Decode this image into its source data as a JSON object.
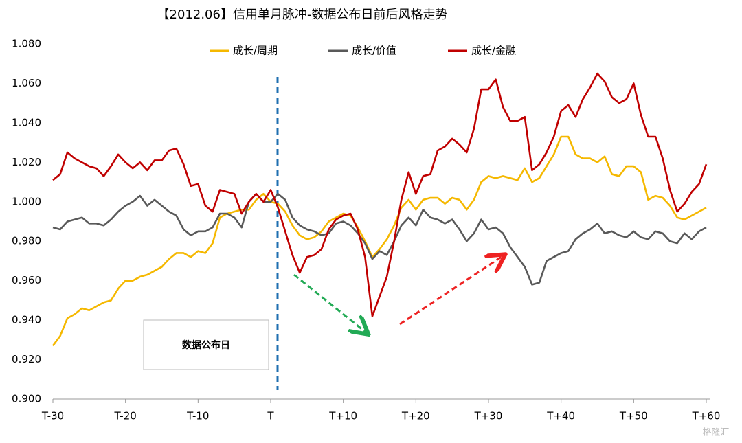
{
  "chart_data": {
    "type": "line",
    "title": "【2012.06】信用单月脉冲-数据公布日前后风格走势",
    "annotations": [
      "数据公布日",
      "格隆汇"
    ],
    "x": [
      -30,
      -29,
      -28,
      -27,
      -26,
      -25,
      -24,
      -23,
      -22,
      -21,
      -20,
      -19,
      -18,
      -17,
      -16,
      -15,
      -14,
      -13,
      -12,
      -11,
      -10,
      -9,
      -8,
      -7,
      -6,
      -5,
      -4,
      -3,
      -2,
      -1,
      0,
      1,
      2,
      3,
      4,
      5,
      6,
      7,
      8,
      9,
      10,
      11,
      12,
      13,
      14,
      15,
      16,
      17,
      18,
      19,
      20,
      21,
      22,
      23,
      24,
      25,
      26,
      27,
      28,
      29,
      30,
      31,
      32,
      33,
      34,
      35,
      36,
      37,
      38,
      39,
      40,
      41,
      42,
      43,
      44,
      45,
      46,
      47,
      48,
      49,
      50,
      51,
      52,
      53,
      54,
      55,
      56,
      57,
      58,
      59,
      60
    ],
    "series": [
      {
        "name": "成长/周期",
        "color": "#f5b800",
        "values": [
          0.927,
          0.932,
          0.941,
          0.943,
          0.946,
          0.945,
          0.947,
          0.949,
          0.95,
          0.956,
          0.96,
          0.96,
          0.962,
          0.963,
          0.965,
          0.967,
          0.971,
          0.974,
          0.974,
          0.972,
          0.975,
          0.974,
          0.979,
          0.992,
          0.994,
          0.995,
          0.996,
          0.996,
          1.001,
          1.004,
          1.0,
          0.999,
          0.995,
          0.988,
          0.983,
          0.981,
          0.982,
          0.985,
          0.99,
          0.992,
          0.994,
          0.993,
          0.987,
          0.98,
          0.972,
          0.976,
          0.981,
          0.988,
          0.997,
          1.001,
          0.996,
          1.001,
          1.002,
          1.002,
          0.999,
          1.002,
          1.001,
          0.996,
          1.001,
          1.01,
          1.013,
          1.012,
          1.013,
          1.012,
          1.011,
          1.017,
          1.01,
          1.012,
          1.018,
          1.024,
          1.033,
          1.033,
          1.024,
          1.022,
          1.022,
          1.02,
          1.023,
          1.014,
          1.013,
          1.018,
          1.018,
          1.015,
          1.001,
          1.003,
          1.002,
          0.998,
          0.992,
          0.991,
          0.993,
          0.995,
          0.997
        ]
      },
      {
        "name": "成长/价值",
        "color": "#595959",
        "values": [
          0.987,
          0.986,
          0.99,
          0.991,
          0.992,
          0.989,
          0.989,
          0.988,
          0.991,
          0.995,
          0.998,
          1.0,
          1.003,
          0.998,
          1.001,
          0.998,
          0.995,
          0.993,
          0.986,
          0.983,
          0.985,
          0.985,
          0.987,
          0.994,
          0.994,
          0.992,
          0.987,
          1.0,
          1.004,
          1.0,
          1.0,
          1.004,
          1.001,
          0.992,
          0.988,
          0.986,
          0.985,
          0.983,
          0.984,
          0.989,
          0.99,
          0.988,
          0.984,
          0.979,
          0.971,
          0.975,
          0.973,
          0.98,
          0.988,
          0.992,
          0.988,
          0.996,
          0.992,
          0.991,
          0.989,
          0.991,
          0.986,
          0.98,
          0.984,
          0.991,
          0.986,
          0.987,
          0.984,
          0.977,
          0.972,
          0.967,
          0.958,
          0.959,
          0.97,
          0.972,
          0.974,
          0.975,
          0.981,
          0.984,
          0.986,
          0.989,
          0.984,
          0.985,
          0.983,
          0.982,
          0.985,
          0.982,
          0.981,
          0.985,
          0.984,
          0.98,
          0.979,
          0.984,
          0.981,
          0.985,
          0.987
        ]
      },
      {
        "name": "成长/金融",
        "color": "#c00000",
        "values": [
          1.011,
          1.014,
          1.025,
          1.022,
          1.02,
          1.018,
          1.017,
          1.013,
          1.018,
          1.024,
          1.02,
          1.017,
          1.02,
          1.016,
          1.021,
          1.021,
          1.026,
          1.027,
          1.019,
          1.008,
          1.009,
          0.998,
          0.995,
          1.006,
          1.005,
          1.004,
          0.994,
          1.0,
          1.004,
          1.0,
          1.006,
          0.997,
          0.985,
          0.973,
          0.964,
          0.972,
          0.973,
          0.976,
          0.986,
          0.991,
          0.993,
          0.994,
          0.986,
          0.972,
          0.942,
          0.952,
          0.962,
          0.98,
          1.001,
          1.015,
          1.004,
          1.013,
          1.014,
          1.026,
          1.028,
          1.032,
          1.029,
          1.025,
          1.037,
          1.057,
          1.057,
          1.062,
          1.048,
          1.041,
          1.041,
          1.043,
          1.016,
          1.019,
          1.025,
          1.033,
          1.046,
          1.049,
          1.043,
          1.052,
          1.058,
          1.065,
          1.061,
          1.053,
          1.05,
          1.052,
          1.06,
          1.044,
          1.033,
          1.033,
          1.022,
          1.006,
          0.995,
          0.999,
          1.005,
          1.009,
          1.019
        ]
      }
    ],
    "xlim": [
      -30,
      60
    ],
    "xticks": [
      {
        "value": -30,
        "label": "T-30"
      },
      {
        "value": -20,
        "label": "T-20"
      },
      {
        "value": -10,
        "label": "T-10"
      },
      {
        "value": 0,
        "label": "T"
      },
      {
        "value": 10,
        "label": "T+10"
      },
      {
        "value": 20,
        "label": "T+20"
      },
      {
        "value": 30,
        "label": "T+30"
      },
      {
        "value": 40,
        "label": "T+40"
      },
      {
        "value": 50,
        "label": "T+50"
      },
      {
        "value": 60,
        "label": "T+60"
      }
    ],
    "ylim": [
      0.9,
      1.08
    ],
    "yticks": [
      {
        "value": 0.9,
        "label": "0.900"
      },
      {
        "value": 0.92,
        "label": "0.920"
      },
      {
        "value": 0.94,
        "label": "0.940"
      },
      {
        "value": 0.96,
        "label": "0.960"
      },
      {
        "value": 0.98,
        "label": "0.980"
      },
      {
        "value": 1.0,
        "label": "1.000"
      },
      {
        "value": 1.02,
        "label": "1.020"
      },
      {
        "value": 1.04,
        "label": "1.040"
      },
      {
        "value": 1.06,
        "label": "1.060"
      },
      {
        "value": 1.08,
        "label": "1.080"
      }
    ],
    "grid": false,
    "legend": "top"
  }
}
